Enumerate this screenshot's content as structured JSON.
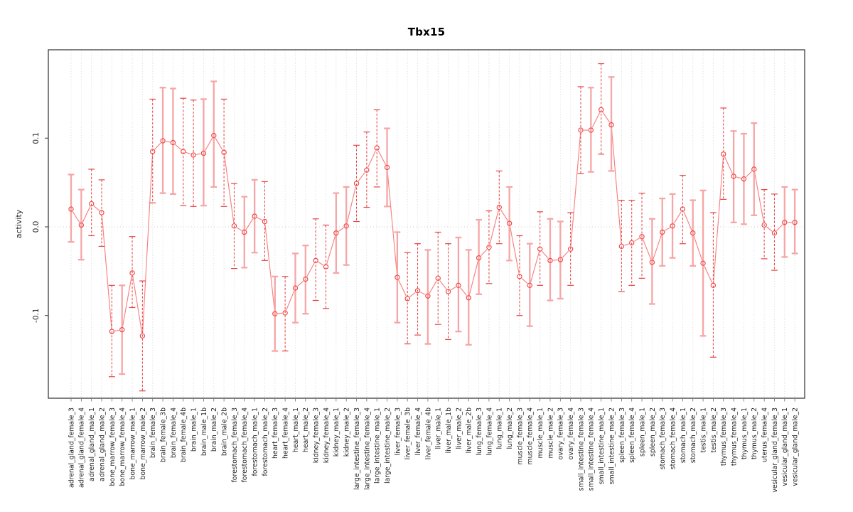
{
  "title": "Tbx15",
  "ylabel": "activity",
  "chart_data": {
    "type": "scatter",
    "subtype": "points-with-error-bars",
    "title": "Tbx15",
    "xlabel": "",
    "ylabel": "activity",
    "ylim": [
      -0.193,
      0.2
    ],
    "yticks": [
      0.1,
      0.0,
      -0.1
    ],
    "ytick_labels": [
      "0.1",
      "0.0",
      "-0.1"
    ],
    "grid": "vertical dotted gridline per category; horizontal dotted line at y=0",
    "legend_position": "none",
    "colors": {
      "point_stroke": "#ef4444",
      "connector_line": "#f88080",
      "error_bar_solid": "#f6a6a6",
      "error_bar_dashed": "#e64545",
      "gridline": "#d6d6d6",
      "zero_line": "#cfcfcf",
      "frame": "#4a4a4a",
      "axis_text": "#1f1f1f"
    },
    "points": [
      {
        "label": "adrenal_gland_female_3",
        "value": 0.02,
        "lo": -0.017,
        "hi": 0.059,
        "style": "solid"
      },
      {
        "label": "adrenal_gland_female_4",
        "value": 0.002,
        "lo": -0.037,
        "hi": 0.042,
        "style": "solid"
      },
      {
        "label": "adrenal_gland_male_1",
        "value": 0.026,
        "lo": -0.01,
        "hi": 0.065,
        "style": "dashed"
      },
      {
        "label": "adrenal_gland_male_2",
        "value": 0.016,
        "lo": -0.022,
        "hi": 0.053,
        "style": "dashed"
      },
      {
        "label": "bone_marrow_female_3",
        "value": -0.118,
        "lo": -0.169,
        "hi": -0.066,
        "style": "dashed"
      },
      {
        "label": "bone_marrow_female_4",
        "value": -0.116,
        "lo": -0.166,
        "hi": -0.066,
        "style": "solid"
      },
      {
        "label": "bone_marrow_male_1",
        "value": -0.052,
        "lo": -0.091,
        "hi": -0.011,
        "style": "dashed"
      },
      {
        "label": "bone_marrow_male_2",
        "value": -0.123,
        "lo": -0.185,
        "hi": -0.061,
        "style": "dashed"
      },
      {
        "label": "brain_female_3",
        "value": 0.085,
        "lo": 0.027,
        "hi": 0.144,
        "style": "dashed"
      },
      {
        "label": "brain_female_3b",
        "value": 0.097,
        "lo": 0.038,
        "hi": 0.157,
        "style": "solid"
      },
      {
        "label": "brain_female_4",
        "value": 0.095,
        "lo": 0.037,
        "hi": 0.156,
        "style": "solid"
      },
      {
        "label": "brain_female_4b",
        "value": 0.085,
        "lo": 0.024,
        "hi": 0.145,
        "style": "dashed"
      },
      {
        "label": "brain_male_1",
        "value": 0.081,
        "lo": 0.023,
        "hi": 0.143,
        "style": "dashed"
      },
      {
        "label": "brain_male_1b",
        "value": 0.083,
        "lo": 0.024,
        "hi": 0.144,
        "style": "solid"
      },
      {
        "label": "brain_male_2",
        "value": 0.103,
        "lo": 0.045,
        "hi": 0.164,
        "style": "solid"
      },
      {
        "label": "brain_male_2b",
        "value": 0.084,
        "lo": 0.023,
        "hi": 0.144,
        "style": "dashed"
      },
      {
        "label": "forestomach_female_3",
        "value": 0.001,
        "lo": -0.047,
        "hi": 0.049,
        "style": "dashed"
      },
      {
        "label": "forestomach_female_4",
        "value": -0.006,
        "lo": -0.046,
        "hi": 0.034,
        "style": "solid"
      },
      {
        "label": "forestomach_male_1",
        "value": 0.012,
        "lo": -0.029,
        "hi": 0.053,
        "style": "solid"
      },
      {
        "label": "forestomach_male_2",
        "value": 0.006,
        "lo": -0.038,
        "hi": 0.051,
        "style": "dashed"
      },
      {
        "label": "heart_female_3",
        "value": -0.098,
        "lo": -0.14,
        "hi": -0.056,
        "style": "solid"
      },
      {
        "label": "heart_female_4",
        "value": -0.097,
        "lo": -0.14,
        "hi": -0.056,
        "style": "dashed"
      },
      {
        "label": "heart_male_1",
        "value": -0.069,
        "lo": -0.108,
        "hi": -0.03,
        "style": "solid"
      },
      {
        "label": "heart_male_2",
        "value": -0.059,
        "lo": -0.098,
        "hi": -0.021,
        "style": "solid"
      },
      {
        "label": "kidney_female_3",
        "value": -0.038,
        "lo": -0.083,
        "hi": 0.009,
        "style": "dashed"
      },
      {
        "label": "kidney_female_4",
        "value": -0.045,
        "lo": -0.092,
        "hi": 0.002,
        "style": "dashed"
      },
      {
        "label": "kidney_male_1",
        "value": -0.007,
        "lo": -0.052,
        "hi": 0.038,
        "style": "solid"
      },
      {
        "label": "kidney_male_2",
        "value": 0.001,
        "lo": -0.043,
        "hi": 0.045,
        "style": "solid"
      },
      {
        "label": "large_intestine_female_3",
        "value": 0.049,
        "lo": 0.006,
        "hi": 0.092,
        "style": "dashed"
      },
      {
        "label": "large_intestine_female_4",
        "value": 0.064,
        "lo": 0.022,
        "hi": 0.107,
        "style": "dashed"
      },
      {
        "label": "large_intestine_male_1",
        "value": 0.089,
        "lo": 0.045,
        "hi": 0.132,
        "style": "dashed"
      },
      {
        "label": "large_intestine_male_2",
        "value": 0.067,
        "lo": 0.023,
        "hi": 0.111,
        "style": "solid"
      },
      {
        "label": "liver_female_3",
        "value": -0.057,
        "lo": -0.108,
        "hi": -0.006,
        "style": "solid"
      },
      {
        "label": "liver_female_3b",
        "value": -0.081,
        "lo": -0.132,
        "hi": -0.029,
        "style": "dashed"
      },
      {
        "label": "liver_female_4",
        "value": -0.072,
        "lo": -0.122,
        "hi": -0.019,
        "style": "dashed"
      },
      {
        "label": "liver_female_4b",
        "value": -0.078,
        "lo": -0.132,
        "hi": -0.026,
        "style": "solid"
      },
      {
        "label": "liver_male_1",
        "value": -0.058,
        "lo": -0.11,
        "hi": -0.006,
        "style": "dashed"
      },
      {
        "label": "liver_male_1b",
        "value": -0.073,
        "lo": -0.127,
        "hi": -0.019,
        "style": "dashed"
      },
      {
        "label": "liver_male_2",
        "value": -0.066,
        "lo": -0.118,
        "hi": -0.012,
        "style": "solid"
      },
      {
        "label": "liver_male_2b",
        "value": -0.08,
        "lo": -0.133,
        "hi": -0.026,
        "style": "solid"
      },
      {
        "label": "lung_female_3",
        "value": -0.035,
        "lo": -0.076,
        "hi": 0.008,
        "style": "solid"
      },
      {
        "label": "lung_female_4",
        "value": -0.023,
        "lo": -0.064,
        "hi": 0.018,
        "style": "dashed"
      },
      {
        "label": "lung_male_1",
        "value": 0.022,
        "lo": -0.019,
        "hi": 0.063,
        "style": "dashed"
      },
      {
        "label": "lung_male_2",
        "value": 0.004,
        "lo": -0.038,
        "hi": 0.045,
        "style": "solid"
      },
      {
        "label": "muscle_female_3",
        "value": -0.056,
        "lo": -0.1,
        "hi": -0.01,
        "style": "dashed"
      },
      {
        "label": "muscle_female_4",
        "value": -0.066,
        "lo": -0.112,
        "hi": -0.019,
        "style": "solid"
      },
      {
        "label": "muscle_male_1",
        "value": -0.025,
        "lo": -0.066,
        "hi": 0.017,
        "style": "dashed"
      },
      {
        "label": "muscle_male_2",
        "value": -0.038,
        "lo": -0.083,
        "hi": 0.009,
        "style": "solid"
      },
      {
        "label": "ovary_female_3",
        "value": -0.037,
        "lo": -0.081,
        "hi": 0.006,
        "style": "solid"
      },
      {
        "label": "ovary_female_4",
        "value": -0.025,
        "lo": -0.066,
        "hi": 0.016,
        "style": "dashed"
      },
      {
        "label": "small_intestine_female_3",
        "value": 0.109,
        "lo": 0.06,
        "hi": 0.158,
        "style": "dashed"
      },
      {
        "label": "small_intestine_female_4",
        "value": 0.109,
        "lo": 0.062,
        "hi": 0.157,
        "style": "solid"
      },
      {
        "label": "small_intestine_male_1",
        "value": 0.132,
        "lo": 0.082,
        "hi": 0.184,
        "style": "dashed"
      },
      {
        "label": "small_intestine_male_2",
        "value": 0.115,
        "lo": 0.063,
        "hi": 0.169,
        "style": "solid"
      },
      {
        "label": "spleen_female_3",
        "value": -0.022,
        "lo": -0.073,
        "hi": 0.03,
        "style": "dashed"
      },
      {
        "label": "spleen_female_4",
        "value": -0.018,
        "lo": -0.066,
        "hi": 0.03,
        "style": "dashed"
      },
      {
        "label": "spleen_male_1",
        "value": -0.011,
        "lo": -0.058,
        "hi": 0.038,
        "style": "dashed"
      },
      {
        "label": "spleen_male_2",
        "value": -0.04,
        "lo": -0.087,
        "hi": 0.009,
        "style": "solid"
      },
      {
        "label": "stomach_female_3",
        "value": -0.006,
        "lo": -0.044,
        "hi": 0.032,
        "style": "solid"
      },
      {
        "label": "stomach_female_4",
        "value": 0.001,
        "lo": -0.035,
        "hi": 0.037,
        "style": "solid"
      },
      {
        "label": "stomach_male_1",
        "value": 0.02,
        "lo": -0.019,
        "hi": 0.058,
        "style": "dashed"
      },
      {
        "label": "stomach_male_2",
        "value": -0.007,
        "lo": -0.044,
        "hi": 0.03,
        "style": "solid"
      },
      {
        "label": "testis_male_1",
        "value": -0.041,
        "lo": -0.123,
        "hi": 0.041,
        "style": "solid"
      },
      {
        "label": "testis_male_2",
        "value": -0.066,
        "lo": -0.147,
        "hi": 0.016,
        "style": "dashed"
      },
      {
        "label": "thymus_female_3",
        "value": 0.082,
        "lo": 0.031,
        "hi": 0.134,
        "style": "dashed"
      },
      {
        "label": "thymus_female_4",
        "value": 0.057,
        "lo": 0.005,
        "hi": 0.108,
        "style": "solid"
      },
      {
        "label": "thymus_male_1",
        "value": 0.054,
        "lo": 0.003,
        "hi": 0.105,
        "style": "solid"
      },
      {
        "label": "thymus_male_2",
        "value": 0.065,
        "lo": 0.013,
        "hi": 0.117,
        "style": "solid"
      },
      {
        "label": "uterus_female_4",
        "value": 0.002,
        "lo": -0.036,
        "hi": 0.042,
        "style": "dashed"
      },
      {
        "label": "vesicular_gland_female_3",
        "value": -0.007,
        "lo": -0.049,
        "hi": 0.037,
        "style": "dashed"
      },
      {
        "label": "vesicular_gland_male_1",
        "value": 0.005,
        "lo": -0.034,
        "hi": 0.045,
        "style": "solid"
      },
      {
        "label": "vesicular_gland_male_2",
        "value": 0.005,
        "lo": -0.03,
        "hi": 0.042,
        "style": "solid"
      }
    ]
  }
}
